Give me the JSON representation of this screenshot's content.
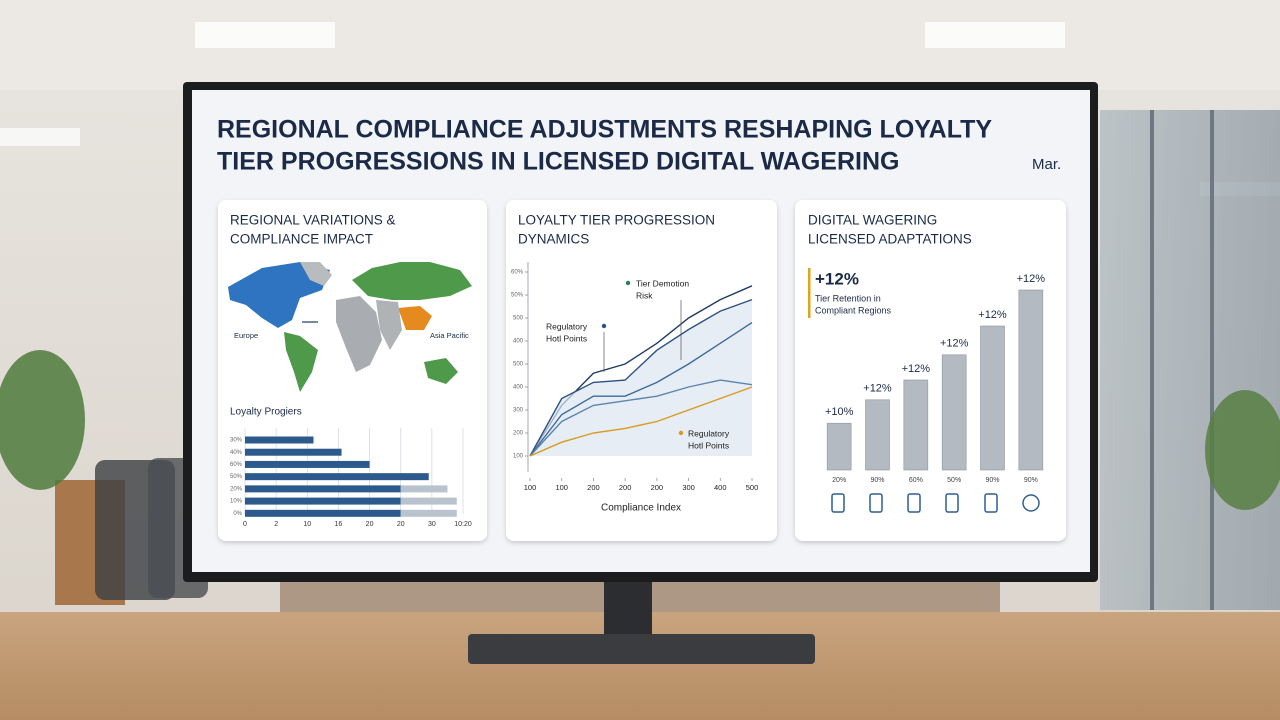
{
  "header": {
    "title": [
      "REGIONAL COMPLIANCE ADJUSTMENTS RESHAPING LOYALTY",
      "TIER PROGRESSIONS IN LICENSED DIGITAL WAGERING"
    ],
    "date": "Mar."
  },
  "panels": [
    {
      "title": [
        "REGIONAL VARIATIONS &",
        "COMPLIANCE IMPACT"
      ],
      "labels": [
        "Europe",
        "Asia Pacific"
      ]
    },
    {
      "title": [
        "LOYALTY TIER PROGRESSION",
        "DYNAMICS"
      ]
    },
    {
      "title": [
        "DIGITAL WAGERING",
        "LICENSED ADAPTATIONS"
      ],
      "callout": "+12%",
      "callout_text": [
        "Tier Retention in",
        "Compliant Regions"
      ]
    }
  ],
  "chart_data": [
    {
      "type": "hbar",
      "title": "Loyalty Progiers",
      "categories": [
        "30%",
        "40%",
        "60%",
        "50%",
        "20%",
        "10%",
        "0%"
      ],
      "series": [
        {
          "color": "#2c5a8c",
          "values": [
            11,
            15.5,
            20,
            29.5,
            25,
            25,
            25
          ]
        },
        {
          "color": "#b9c3cd",
          "values": [
            0,
            0,
            0,
            0,
            7.5,
            9,
            9
          ]
        }
      ],
      "xlim": [
        0,
        35
      ],
      "xticks": [
        0,
        {
          "value": 5,
          "label": "2"
        },
        10,
        {
          "value": 15,
          "label": "16"
        },
        20,
        {
          "value": 25,
          "label": "20"
        },
        30,
        {
          "value": 35,
          "label": "10:20"
        }
      ],
      "grid": true
    },
    {
      "type": "line",
      "xlabel": "Compliance Index",
      "x": [
        0,
        1,
        2,
        3,
        4,
        5,
        6,
        7
      ],
      "series": [
        {
          "color": "#1f3b63",
          "values": [
            0,
            2.2,
            3.6,
            4.0,
            4.9,
            6.0,
            6.8,
            7.4
          ]
        },
        {
          "color": "#2c5282",
          "values": [
            0,
            2.5,
            3.2,
            3.3,
            4.6,
            5.5,
            6.3,
            6.8
          ],
          "area": true
        },
        {
          "color": "#3d6a9a",
          "values": [
            0,
            1.8,
            2.6,
            2.6,
            3.2,
            4.0,
            4.9,
            5.8
          ]
        },
        {
          "color": "#5a86b0",
          "values": [
            0,
            1.5,
            2.2,
            2.4,
            2.6,
            3.0,
            3.3,
            3.1
          ]
        },
        {
          "color": "#d89a1c",
          "values": [
            0,
            0.6,
            1.0,
            1.2,
            1.5,
            2.0,
            2.5,
            3.0
          ]
        }
      ],
      "xlim": [
        0,
        7
      ],
      "xticks": [
        {
          "value": 0,
          "label": "100"
        },
        {
          "value": 1,
          "label": "100"
        },
        {
          "value": 2,
          "label": "200"
        },
        {
          "value": 3,
          "label": "200"
        },
        {
          "value": 4,
          "label": "200"
        },
        {
          "value": 5,
          "label": "300"
        },
        {
          "value": 6,
          "label": "400"
        },
        {
          "value": 7,
          "label": "500"
        }
      ],
      "ylim": [
        0,
        8
      ],
      "yticks": [
        {
          "value": 0,
          "label": "100"
        },
        {
          "value": 1,
          "label": "200"
        },
        {
          "value": 2,
          "label": "300"
        },
        {
          "value": 3,
          "label": "400"
        },
        {
          "value": 4,
          "label": "500"
        },
        {
          "value": 5,
          "label": "400"
        },
        {
          "value": 6,
          "label": "500"
        },
        {
          "value": 7,
          "label": "50%"
        },
        {
          "value": 8,
          "label": "60%"
        }
      ],
      "annotations": [
        {
          "text": [
            "Tier Demotion",
            "Risk"
          ],
          "color": "#2e7d5b"
        },
        {
          "text": [
            "Regulatory",
            "Hotl Points"
          ],
          "color": "#2c5282"
        },
        {
          "text": [
            "Regulatory",
            "Hotl Points"
          ],
          "color": "#d89a1c"
        }
      ]
    },
    {
      "type": "bar",
      "categories": [
        "20%",
        "90%",
        "60%",
        "50%",
        "90%",
        "90%"
      ],
      "values": [
        26,
        39,
        50,
        64,
        80,
        100
      ],
      "annotations": [
        "+10%",
        "+12%",
        "+12%",
        "+12%",
        "+12%",
        "+12%"
      ],
      "color": "#b4bac1",
      "ylim": [
        0,
        100
      ]
    }
  ]
}
